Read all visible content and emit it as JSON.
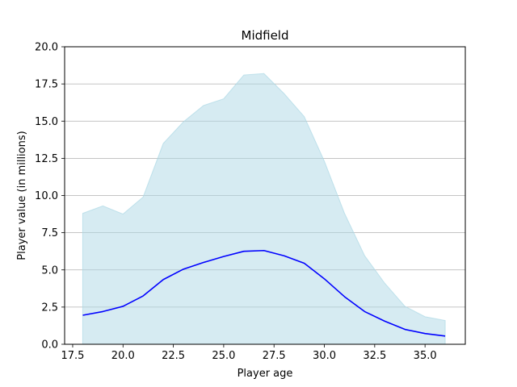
{
  "chart_data": {
    "type": "line",
    "title": "Midfield",
    "xlabel": "Player age",
    "ylabel": "Player value (in millions)",
    "xlim": [
      17.1,
      37.0
    ],
    "ylim": [
      0.0,
      20.0
    ],
    "xticks": [
      17.5,
      20.0,
      22.5,
      25.0,
      27.5,
      30.0,
      32.5,
      35.0
    ],
    "xtick_labels": [
      "17.5",
      "20.0",
      "22.5",
      "25.0",
      "27.5",
      "30.0",
      "32.5",
      "35.0"
    ],
    "yticks": [
      0.0,
      2.5,
      5.0,
      7.5,
      10.0,
      12.5,
      15.0,
      17.5,
      20.0
    ],
    "ytick_labels": [
      "0.0",
      "2.5",
      "5.0",
      "7.5",
      "10.0",
      "12.5",
      "15.0",
      "17.5",
      "20.0"
    ],
    "grid": "horizontal",
    "x": [
      18,
      19,
      20,
      21,
      22,
      23,
      24,
      25,
      26,
      27,
      28,
      29,
      30,
      31,
      32,
      33,
      34,
      35,
      36
    ],
    "series": [
      {
        "values": [
          1.95,
          2.2,
          2.55,
          3.25,
          4.35,
          5.05,
          5.5,
          5.9,
          6.25,
          6.3,
          5.95,
          5.45,
          4.4,
          3.2,
          2.2,
          1.55,
          1.0,
          0.72,
          0.55
        ],
        "color": "#0000ff"
      }
    ],
    "band": {
      "lower": [
        0,
        0,
        0,
        0,
        0,
        0,
        0,
        0,
        0,
        0,
        0,
        0,
        0,
        0,
        0,
        0,
        0,
        0,
        0
      ],
      "upper": [
        8.8,
        9.3,
        8.75,
        9.9,
        13.5,
        14.95,
        16.05,
        16.5,
        18.1,
        18.2,
        16.85,
        15.3,
        12.3,
        8.8,
        5.95,
        4.1,
        2.55,
        1.85,
        1.6
      ],
      "color": "#add8e6"
    }
  }
}
